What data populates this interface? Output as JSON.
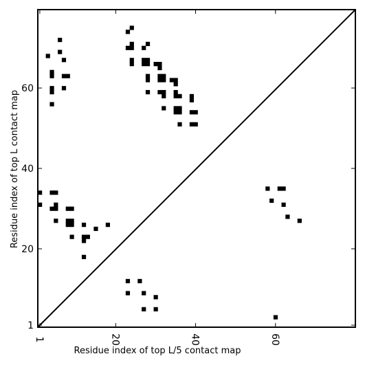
{
  "chart_data": {
    "type": "scatter",
    "title": "",
    "xlabel": "Residue index of top L/5 contact map",
    "ylabel": "Residue index of top L contact map",
    "xlim": [
      0.5,
      80
    ],
    "ylim": [
      0.5,
      79.5
    ],
    "xticks": [
      {
        "value": 1,
        "label": "1"
      },
      {
        "value": 20,
        "label": "20"
      },
      {
        "value": 40,
        "label": "40"
      },
      {
        "value": 60,
        "label": "60"
      }
    ],
    "yticks": [
      {
        "value": 1,
        "label": "1"
      },
      {
        "value": 20,
        "label": "20"
      },
      {
        "value": 40,
        "label": "40"
      },
      {
        "value": 60,
        "label": "60"
      }
    ],
    "diagonal": true,
    "grid": false,
    "mark_color": "#000000",
    "series": [
      {
        "points": [
          [
            6,
            72
          ],
          [
            3,
            68
          ],
          [
            6,
            69
          ],
          [
            7,
            67
          ],
          [
            4,
            64
          ],
          [
            4,
            63
          ],
          [
            8,
            63
          ],
          [
            7,
            63
          ],
          [
            4,
            60
          ],
          [
            4,
            59
          ],
          [
            7,
            60
          ],
          [
            4,
            56
          ],
          [
            23,
            74
          ],
          [
            24,
            75
          ],
          [
            23,
            70
          ],
          [
            24,
            71
          ],
          [
            24,
            70
          ],
          [
            24,
            67
          ],
          [
            24,
            66
          ],
          [
            27,
            70
          ],
          [
            28,
            71
          ],
          [
            27,
            67
          ],
          [
            28,
            67
          ],
          [
            27,
            66
          ],
          [
            28,
            66
          ],
          [
            28,
            63
          ],
          [
            28,
            62
          ],
          [
            30,
            66
          ],
          [
            31,
            66
          ],
          [
            31,
            65
          ],
          [
            31,
            63
          ],
          [
            32,
            63
          ],
          [
            31,
            62
          ],
          [
            32,
            62
          ],
          [
            28,
            59
          ],
          [
            31,
            59
          ],
          [
            32,
            59
          ],
          [
            32,
            58
          ],
          [
            34,
            62
          ],
          [
            35,
            62
          ],
          [
            35,
            61
          ],
          [
            35,
            59
          ],
          [
            35,
            58
          ],
          [
            36,
            58
          ],
          [
            32,
            55
          ],
          [
            35,
            55
          ],
          [
            36,
            55
          ],
          [
            35,
            54
          ],
          [
            36,
            54
          ],
          [
            39,
            58
          ],
          [
            39,
            57
          ],
          [
            39,
            54
          ],
          [
            40,
            54
          ],
          [
            36,
            51
          ],
          [
            39,
            51
          ],
          [
            40,
            51
          ],
          [
            1,
            34
          ],
          [
            4,
            34
          ],
          [
            5,
            34
          ],
          [
            1,
            31
          ],
          [
            5,
            31
          ],
          [
            4,
            30
          ],
          [
            5,
            30
          ],
          [
            8,
            30
          ],
          [
            9,
            30
          ],
          [
            5,
            27
          ],
          [
            8,
            27
          ],
          [
            9,
            27
          ],
          [
            8,
            26
          ],
          [
            9,
            26
          ],
          [
            12,
            26
          ],
          [
            9,
            23
          ],
          [
            12,
            23
          ],
          [
            13,
            23
          ],
          [
            12,
            22
          ],
          [
            15,
            25
          ],
          [
            18,
            26
          ],
          [
            12,
            18
          ],
          [
            58,
            35
          ],
          [
            61,
            35
          ],
          [
            62,
            35
          ],
          [
            59,
            32
          ],
          [
            62,
            31
          ],
          [
            63,
            28
          ],
          [
            66,
            27
          ],
          [
            23,
            12
          ],
          [
            26,
            12
          ],
          [
            23,
            9
          ],
          [
            27,
            9
          ],
          [
            30,
            8
          ],
          [
            27,
            5
          ],
          [
            30,
            5
          ],
          [
            60,
            3
          ]
        ]
      }
    ]
  }
}
